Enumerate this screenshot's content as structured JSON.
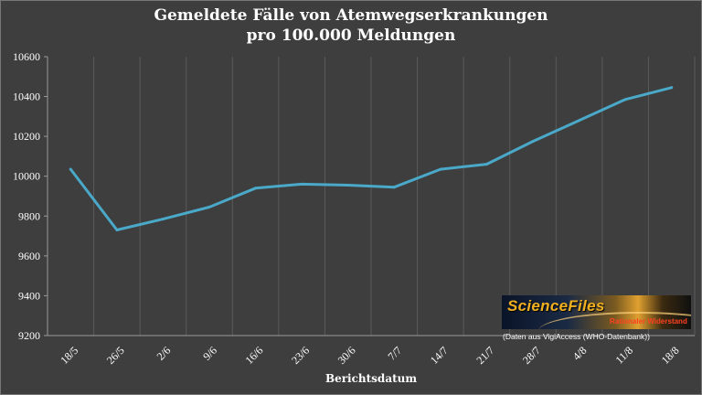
{
  "chart_data": {
    "type": "line",
    "title": [
      "Gemeldete Fälle von Atemwegserkrankungen",
      "pro 100.000 Meldungen"
    ],
    "xlabel": "Berichtsdatum",
    "ylabel": "",
    "ylim": [
      9200,
      10600
    ],
    "yticks": [
      "9200",
      "9400",
      "9600",
      "9800",
      "10000",
      "10200",
      "10400",
      "10600"
    ],
    "ytick_values": [
      9200,
      9400,
      9600,
      9800,
      10000,
      10200,
      10400,
      10600
    ],
    "grid": "vertical",
    "categories": [
      "18/5",
      "26/5",
      "2/6",
      "9/6",
      "16/6",
      "23/6",
      "30/6",
      "7/7",
      "14/7",
      "21/7",
      "28/7",
      "4/8",
      "11/8",
      "18/8"
    ],
    "series": [
      {
        "values": [
          10035,
          9730,
          9785,
          9845,
          9940,
          9960,
          9955,
          9945,
          10035,
          10060,
          10175,
          10280,
          10385,
          10445
        ],
        "color": "#4aa8c8"
      }
    ]
  },
  "logo": {
    "name": "ScienceFiles",
    "sub": "Rationaler Widerstand"
  },
  "source_note": "(Daten aus VigiAccess (WHO-Datenbank))",
  "colors": {
    "background": "#3e3e3e",
    "grid": "#5a5a5a",
    "axis": "#9a9a9a",
    "text": "#ffffff"
  }
}
